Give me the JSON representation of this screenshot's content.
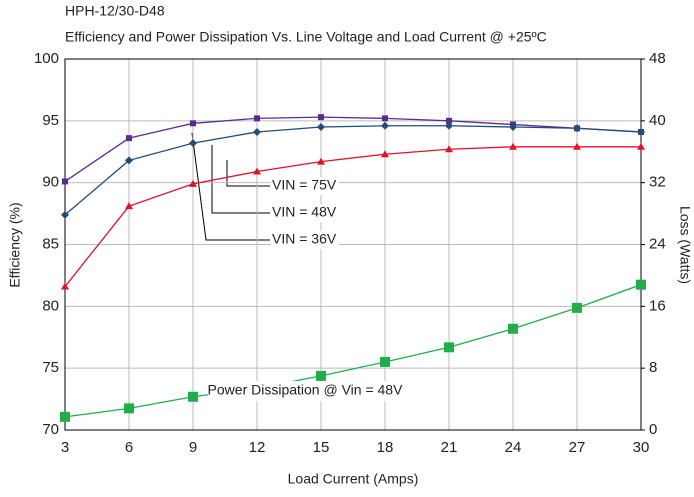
{
  "chart_data": {
    "type": "line",
    "title": "HPH-12/30-D48",
    "subtitle": "Efficiency and Power Dissipation Vs. Line Voltage and Load Current @ +25ºC",
    "x_label": "Load Current (Amps)",
    "y_label": "Efficiency (%)",
    "y2_label": "Loss (Watts)",
    "x": [
      3,
      6,
      9,
      12,
      15,
      18,
      21,
      24,
      27,
      30
    ],
    "xlim": [
      3,
      30
    ],
    "xticks": [
      3,
      6,
      9,
      12,
      15,
      18,
      21,
      24,
      27,
      30
    ],
    "ylim": [
      70,
      100
    ],
    "yticks": [
      70,
      75,
      80,
      85,
      90,
      95,
      100
    ],
    "y2lim": [
      0,
      48
    ],
    "y2ticks": [
      0,
      8,
      16,
      24,
      32,
      40,
      48
    ],
    "grid": true,
    "series": [
      {
        "name": "VIN = 36V",
        "color": "#5b2c8f",
        "marker": "square",
        "values": [
          90.1,
          93.6,
          94.8,
          95.2,
          95.3,
          95.2,
          95.0,
          94.7,
          94.4,
          94.1
        ]
      },
      {
        "name": "VIN = 48V",
        "color": "#1f4e79",
        "marker": "diamond",
        "values": [
          87.4,
          91.8,
          93.2,
          94.1,
          94.5,
          94.6,
          94.6,
          94.5,
          94.4,
          94.1
        ]
      },
      {
        "name": "VIN = 75V",
        "color": "#e3122c",
        "marker": "triangle",
        "values": [
          81.6,
          88.1,
          89.9,
          90.9,
          91.7,
          92.3,
          92.7,
          92.9,
          92.9,
          92.9
        ]
      },
      {
        "name": "Power Dissipation @ Vin = 48V",
        "color": "#1fae4a",
        "marker": "bigsquare",
        "axis": "y2",
        "values": [
          1.7,
          2.8,
          4.3,
          5.4,
          7.0,
          8.8,
          10.7,
          13.1,
          15.8,
          18.8
        ]
      }
    ]
  }
}
